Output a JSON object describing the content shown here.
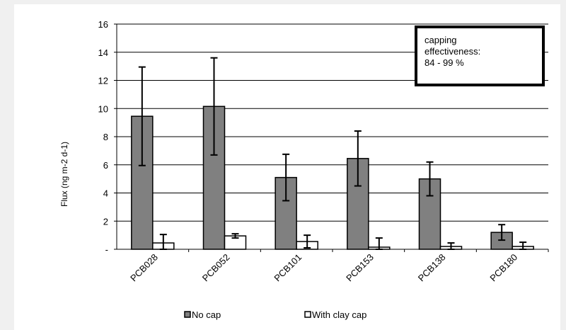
{
  "chart_data": {
    "type": "bar",
    "categories": [
      "PCB028",
      "PCB052",
      "PCB101",
      "PCB153",
      "PCB138",
      "PCB180"
    ],
    "series": [
      {
        "name": "No cap",
        "color": "#808080",
        "values": [
          9.45,
          10.15,
          5.1,
          6.45,
          5.0,
          1.2
        ],
        "error": [
          3.5,
          3.45,
          1.65,
          1.95,
          1.2,
          0.55
        ]
      },
      {
        "name": "With clay cap",
        "color": "#ffffff",
        "values": [
          0.45,
          0.95,
          0.55,
          0.15,
          0.2,
          0.2
        ],
        "error": [
          0.6,
          0.15,
          0.45,
          0.65,
          0.25,
          0.3
        ]
      }
    ],
    "ylabel": "Flux (ng m-2 d-1)",
    "xlabel": "",
    "ylim": [
      0,
      16
    ],
    "yticks": [
      "-",
      "2",
      "4",
      "6",
      "8",
      "10",
      "12",
      "14",
      "16"
    ],
    "grid": true,
    "legend": "bottom",
    "annotation": {
      "lines": [
        "capping",
        "effectiveness:",
        "84 - 99 %"
      ]
    }
  }
}
